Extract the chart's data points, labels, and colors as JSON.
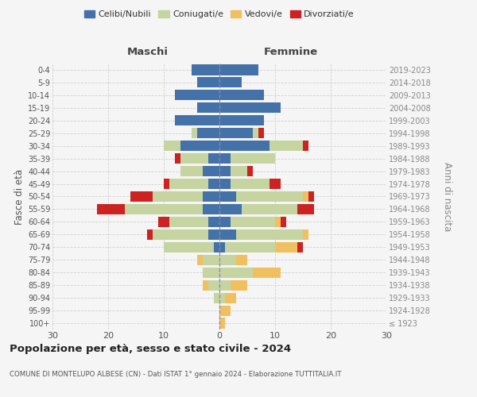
{
  "age_groups": [
    "100+",
    "95-99",
    "90-94",
    "85-89",
    "80-84",
    "75-79",
    "70-74",
    "65-69",
    "60-64",
    "55-59",
    "50-54",
    "45-49",
    "40-44",
    "35-39",
    "30-34",
    "25-29",
    "20-24",
    "15-19",
    "10-14",
    "5-9",
    "0-4"
  ],
  "birth_years": [
    "≤ 1923",
    "1924-1928",
    "1929-1933",
    "1934-1938",
    "1939-1943",
    "1944-1948",
    "1949-1953",
    "1954-1958",
    "1959-1963",
    "1964-1968",
    "1969-1973",
    "1974-1978",
    "1979-1983",
    "1984-1988",
    "1989-1993",
    "1994-1998",
    "1999-2003",
    "2004-2008",
    "2009-2013",
    "2014-2018",
    "2019-2023"
  ],
  "colors": {
    "celibi": "#4472a8",
    "coniugati": "#c5d4a0",
    "vedovi": "#f0c060",
    "divorziati": "#cc2222"
  },
  "males": {
    "celibi": [
      0,
      0,
      0,
      0,
      0,
      0,
      1,
      2,
      2,
      3,
      3,
      2,
      3,
      2,
      7,
      4,
      8,
      4,
      8,
      4,
      5
    ],
    "coniugati": [
      0,
      0,
      1,
      2,
      3,
      3,
      9,
      10,
      7,
      14,
      9,
      7,
      4,
      5,
      3,
      1,
      0,
      0,
      0,
      0,
      0
    ],
    "vedovi": [
      0,
      0,
      0,
      1,
      0,
      1,
      0,
      0,
      0,
      0,
      0,
      0,
      0,
      0,
      0,
      0,
      0,
      0,
      0,
      0,
      0
    ],
    "divorziati": [
      0,
      0,
      0,
      0,
      0,
      0,
      0,
      1,
      2,
      5,
      4,
      1,
      0,
      1,
      0,
      0,
      0,
      0,
      0,
      0,
      0
    ]
  },
  "females": {
    "celibi": [
      0,
      0,
      0,
      0,
      0,
      0,
      1,
      3,
      2,
      4,
      3,
      2,
      2,
      2,
      9,
      6,
      8,
      11,
      8,
      4,
      7
    ],
    "coniugati": [
      0,
      0,
      1,
      2,
      6,
      3,
      9,
      12,
      8,
      10,
      12,
      7,
      3,
      8,
      6,
      1,
      0,
      0,
      0,
      0,
      0
    ],
    "vedovi": [
      1,
      2,
      2,
      3,
      5,
      2,
      4,
      1,
      1,
      0,
      1,
      0,
      0,
      0,
      0,
      0,
      0,
      0,
      0,
      0,
      0
    ],
    "divorziati": [
      0,
      0,
      0,
      0,
      0,
      0,
      1,
      0,
      1,
      3,
      1,
      2,
      1,
      0,
      1,
      1,
      0,
      0,
      0,
      0,
      0
    ]
  },
  "xlim": 30,
  "title": "Popolazione per età, sesso e stato civile - 2024",
  "subtitle": "COMUNE DI MONTELUPO ALBESE (CN) - Dati ISTAT 1° gennaio 2024 - Elaborazione TUTTITALIA.IT",
  "ylabel_left": "Fasce di età",
  "ylabel_right": "Anni di nascita",
  "xlabel_left": "Maschi",
  "xlabel_right": "Femmine",
  "legend_labels": [
    "Celibi/Nubili",
    "Coniugati/e",
    "Vedovi/e",
    "Divorziati/e"
  ],
  "bg_color": "#f5f5f5",
  "grid_color": "#cccccc"
}
